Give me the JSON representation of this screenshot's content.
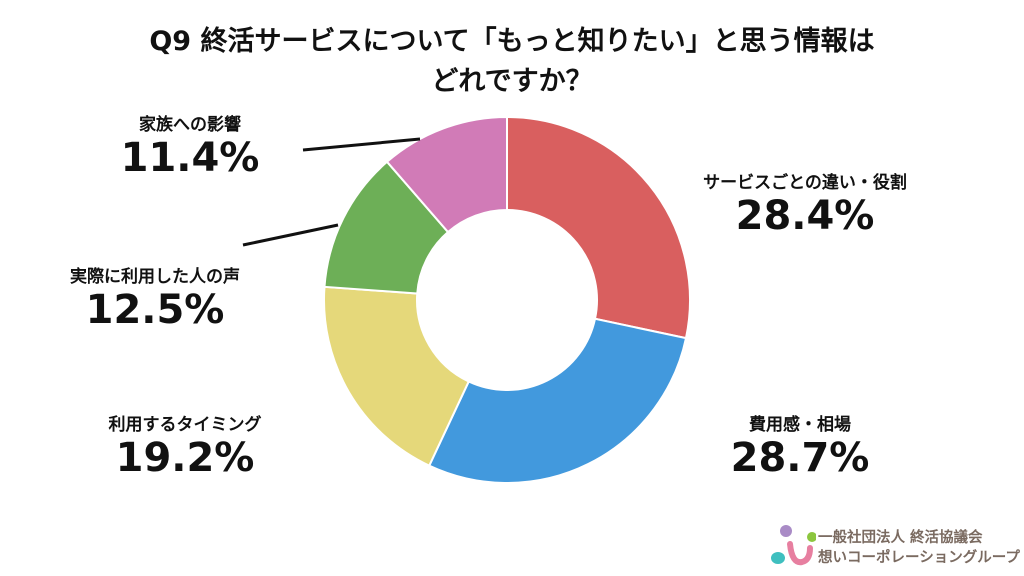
{
  "chart_data": {
    "type": "pie",
    "variant": "donut",
    "title_lines": [
      "Q9 終活サービスについて「もっと知りたい」と思う情報は",
      "どれですか？"
    ],
    "start": "top",
    "direction": "clockwise",
    "slices": [
      {
        "label": "サービスごとの違い・役割",
        "value": 28.4,
        "display": "28.4%",
        "color": "#D95F5F"
      },
      {
        "label": "費用感・相場",
        "value": 28.7,
        "display": "28.7%",
        "color": "#4299DD"
      },
      {
        "label": "利用するタイミング",
        "value": 19.2,
        "display": "19.2%",
        "color": "#E5D87A"
      },
      {
        "label": "実際に利用した人の声",
        "value": 12.5,
        "display": "12.5%",
        "color": "#6DAF57"
      },
      {
        "label": "家族への影響",
        "value": 11.4,
        "display": "11.4%",
        "color": "#D17BB7"
      }
    ]
  },
  "logo": {
    "line1": "一般社団法人 終活協議会",
    "line2": "想いコーポレーショングループ"
  }
}
